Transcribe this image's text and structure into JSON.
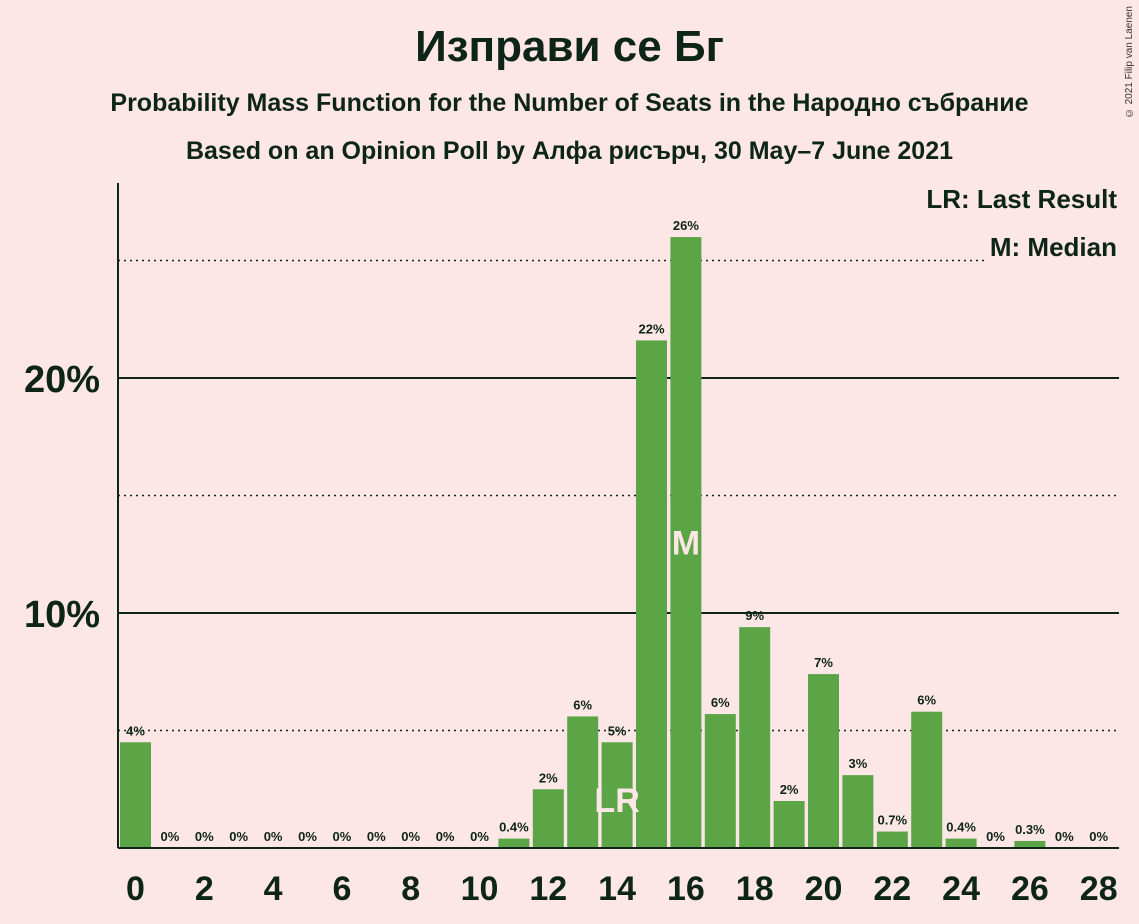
{
  "header": {
    "title": "Изправи се Бг",
    "subtitle1": "Probability Mass Function for the Number of Seats in the Народно събрание",
    "subtitle2": "Based on an Opinion Poll by Алфа рисърч, 30 May–7 June 2021",
    "copyright": "© 2021 Filip van Laenen"
  },
  "legend": {
    "lr": "LR: Last Result",
    "m": "M: Median"
  },
  "colors": {
    "background": "#fde6e6",
    "bar": "#5ba547",
    "text": "#0d2418",
    "marker_text": "#fde6e6"
  },
  "chart_data": {
    "type": "bar",
    "categories": [
      0,
      1,
      2,
      3,
      4,
      5,
      6,
      7,
      8,
      9,
      10,
      11,
      12,
      13,
      14,
      15,
      16,
      17,
      18,
      19,
      20,
      21,
      22,
      23,
      24,
      25,
      26,
      27,
      28
    ],
    "values": [
      4.5,
      0,
      0,
      0,
      0,
      0,
      0,
      0,
      0,
      0,
      0,
      0.4,
      2.5,
      5.6,
      4.5,
      21.6,
      26.0,
      5.7,
      9.4,
      2.0,
      7.4,
      3.1,
      0.7,
      5.8,
      0.4,
      0,
      0.3,
      0,
      0
    ],
    "labels": [
      "4%",
      "0%",
      "0%",
      "0%",
      "0%",
      "0%",
      "0%",
      "0%",
      "0%",
      "0%",
      "0%",
      "0.4%",
      "2%",
      "6%",
      "5%",
      "22%",
      "26%",
      "6%",
      "9%",
      "2%",
      "7%",
      "3%",
      "0.7%",
      "6%",
      "0.4%",
      "0%",
      "0.3%",
      "0%",
      "0%"
    ],
    "x_tick_labels": [
      "0",
      "2",
      "4",
      "6",
      "8",
      "10",
      "12",
      "14",
      "16",
      "18",
      "20",
      "22",
      "24",
      "26",
      "28"
    ],
    "y_tick_labels": [
      "10%",
      "20%"
    ],
    "y_solid_gridlines": [
      10,
      20
    ],
    "y_dotted_gridlines": [
      5,
      10,
      15,
      25
    ],
    "ylim": [
      0,
      28.3
    ],
    "last_result_seat": 14,
    "last_result_label": "LR",
    "median_seat": 16,
    "median_label": "M"
  }
}
